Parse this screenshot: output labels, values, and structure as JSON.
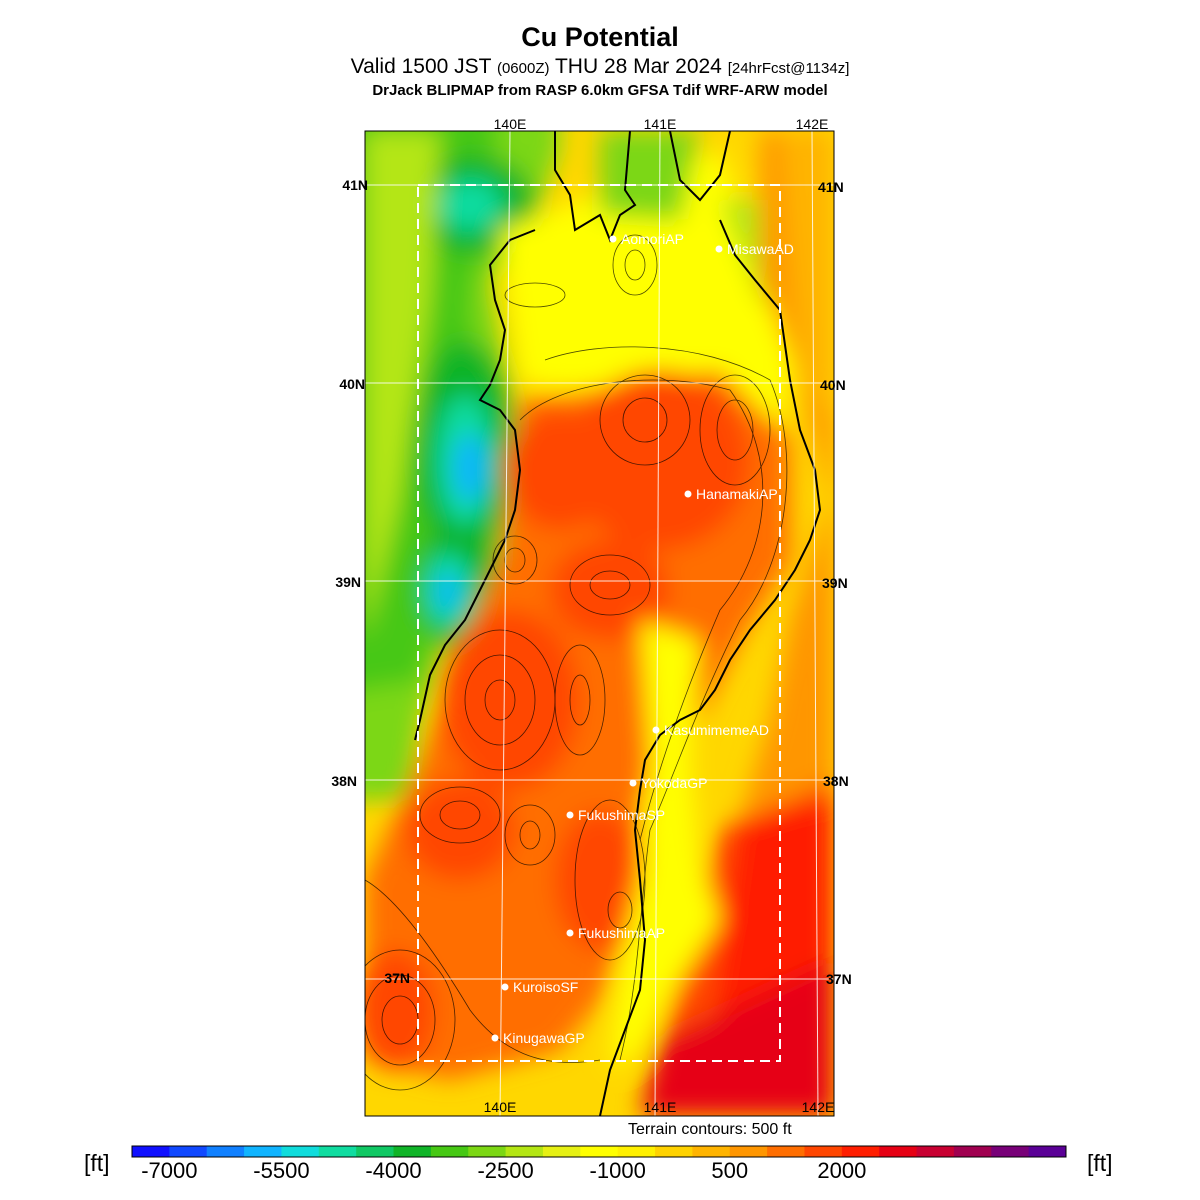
{
  "header": {
    "title": "Cu Potential",
    "valid_prefix": "Valid 1500 JST",
    "valid_zulu": "(0600Z)",
    "valid_date": "THU 28 Mar 2024",
    "forecast": "[24hrFcst@1134z]",
    "source": "DrJack BLIPMAP from RASP 6.0km GFSA Tdif WRF-ARW model"
  },
  "map": {
    "lon_labels": [
      "140E",
      "141E",
      "142E"
    ],
    "lat_labels": [
      "41N",
      "40N",
      "39N",
      "38N",
      "37N"
    ],
    "stations": [
      "AomoriAP",
      "MisawaAD",
      "HanamakiAP",
      "KasumimemeAD",
      "YokodaGP",
      "FukushimaSP",
      "FukushimaAP",
      "KuroisoSF",
      "KinugawaGP"
    ],
    "terrain_note": "Terrain contours: 500 ft"
  },
  "legend": {
    "unit": "[ft]",
    "tick_labels": [
      "-7000",
      "-5500",
      "-4000",
      "-2500",
      "-1000",
      "500",
      "2000"
    ],
    "colors": [
      "#1010ff",
      "#1048ff",
      "#1080ff",
      "#10b4ff",
      "#10dcdc",
      "#10dca0",
      "#10c864",
      "#10b428",
      "#46c814",
      "#7cd714",
      "#b4e614",
      "#e6f014",
      "#ffff00",
      "#fff000",
      "#ffd200",
      "#ffb400",
      "#ff9600",
      "#ff6e00",
      "#ff4600",
      "#ff1e00",
      "#e60014",
      "#c80032",
      "#a00050",
      "#780078",
      "#5a0096"
    ]
  }
}
